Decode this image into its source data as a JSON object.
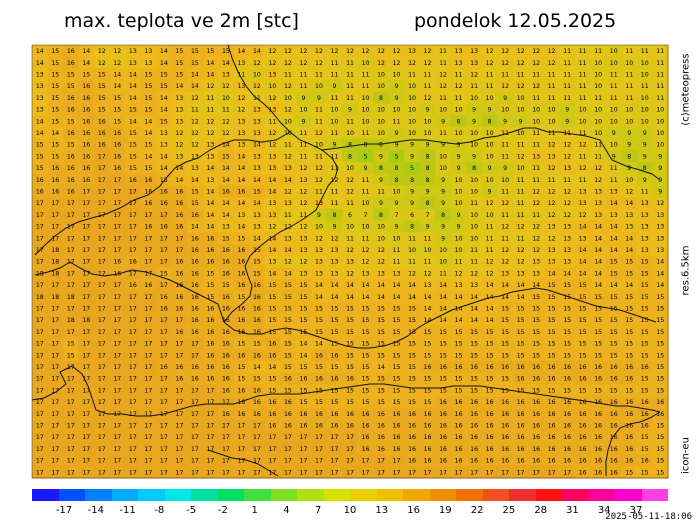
{
  "header": {
    "title": "max. teplota ve 2m [stc]",
    "date": "pondelok 12.05.2025"
  },
  "side": {
    "credit": "(c)meteopress",
    "resolution": "res.6.5km",
    "model": "icon-eu"
  },
  "timestamp": "2025-05-11-18:06",
  "legend": {
    "tick_labels": [
      "-17",
      "-14",
      "-11",
      "-8",
      "-5",
      "-2",
      "1",
      "4",
      "7",
      "10",
      "13",
      "16",
      "19",
      "22",
      "25",
      "28",
      "31",
      "34",
      "37"
    ],
    "colors": [
      "#1a1aff",
      "#0050ff",
      "#0080ff",
      "#00aaff",
      "#00ccff",
      "#00e5e5",
      "#00e0a0",
      "#00e060",
      "#40e040",
      "#80e020",
      "#b0e010",
      "#d8e000",
      "#e8d000",
      "#f0c000",
      "#f0a800",
      "#f09000",
      "#f07000",
      "#f05020",
      "#f03030",
      "#ff1010",
      "#ff0060",
      "#ff00a0",
      "#ff00d0",
      "#ff40e0"
    ]
  },
  "map_colors": {
    "t17": "#e9a71f",
    "t16": "#ebab1e",
    "t15": "#ecb11d",
    "t14": "#ecb61c",
    "t13": "#ecbc1b",
    "t12": "#e8c01a",
    "t11": "#e3c418",
    "t10": "#dcc716",
    "t9": "#cfc814",
    "t8": "#bdc812",
    "t5": "#a6cd10",
    "border": "#111111"
  },
  "grid": {
    "rows": [
      "14 15 16 14 12 12 13 13 14 15 15 15 15 14 14 12 12 12 12 12 12 12 12 12 13 12 11 13 13 12 12 12 12 12 11 11 11 10 11 11 11",
      "14 15 16 14 12 12 13 13 14 15 15 14 14 13 12 12 12 12 12 11 11 10 12 12 12 12 11 13 13 12 12 12 12 12 11 11 10 10 10 10 11",
      "13 15 15 15 15 14 14 15 15 15 14 14 13 11 10 13 11 11 11 11 11 11 10 10 11 11 12 11 12 11 11 11 11 11 11 11 10 11 11 10 11",
      "13 15 15 16 15 14 14 15 15 14 14 12 12 13 12 10 12 11 10 9 11 11 10 9 10 11 12 12 11 11 12 12 12 11 11 11 10 11 11 11 11",
      "13 15 16 16 15 15 14 15 14 13 12 11 10 12 11 12 10 9 9 11 11 10 8 9 10 12 11 11 10 10 9 10 11 11 11 11 11 11 11 10 11",
      "13 15 16 16 15 15 15 15 14 13 11 11 11 12 13 13 12 10 11 10 9 10 10 10 10 9 10 10 9 9 10 10 10 10 9 10 10 10 10 10 10",
      "14 15 15 16 16 15 14 14 15 13 12 12 12 13 13 11 10 9 11 10 11 10 10 11 10 10 9 8 9 8 9 9 10 10 9 10 10 10 10 10 10",
      "14 14 16 16 16 16 15 14 13 12 12 12 12 13 13 12 10 11 12 11 10 11 10 9 10 10 11 10 10 10 11 10 11 11 11 11 10 9 9 9 10",
      "15 15 15 16 16 16 15 15 13 12 12 13 14 13 14 12 11 11 10 9 8 8 8 9 9 9 9 9 10 10 11 11 11 12 12 12 11 10 9 9 10",
      "15 15 16 16 17 16 15 14 14 13 13 13 15 14 13 13 12 11 11 11 8 5 9 5 9 8 10 9 9 10 11 12 13 13 12 11 11 9 8 9 9",
      "15 16 16 16 17 16 15 15 14 14 13 14 14 14 13 13 13 12 12 11 10 9 8 8 5 8 10 9 8 9 9 10 11 12 13 12 12 11 9 8 9",
      "16 16 16 16 17 17 16 16 15 14 14 13 14 14 14 14 14 13 12 12 12 11 9 8 8 8 9 10 10 10 10 11 11 11 11 11 12 11 10 9 9",
      "16 16 16 17 17 17 17 16 16 16 15 14 16 16 15 14 12 12 11 11 12 11 11 10 9 9 9 10 10 9 11 11 12 12 12 13 13 13 12 11 9",
      "17 17 17 17 17 17 17 16 16 16 15 14 14 14 14 13 13 12 13 11 11 10 9 9 9 8 9 10 11 12 12 11 12 12 12 13 13 14 14 13 12",
      "17 17 17 17 17 17 17 17 17 16 16 14 14 13 13 13 11 11 9 8 6 7 8 7 6 7 8 9 10 10 11 11 11 12 12 12 13 13 13 13 13",
      "17 17 17 17 17 17 17 16 16 16 14 14 13 14 13 12 12 12 10 9 10 10 10 9 8 9 9 9 10 11 12 12 12 13 13 14 14 14 13 13 13",
      "17 17 17 17 17 17 17 17 17 17 16 16 15 15 14 14 13 13 12 12 11 11 10 10 11 11 9 10 10 11 11 11 12 12 13 13 14 14 14 13 13",
      "17 18 17 17 17 17 17 17 17 17 16 16 16 16 15 14 14 13 13 13 12 12 12 11 10 10 10 10 11 11 12 12 12 13 13 14 14 14 14 13 13",
      "17 18 17 17 17 16 16 17 17 16 16 16 16 16 15 13 12 12 13 13 13 12 12 11 11 11 10 11 11 12 12 12 13 13 13 14 14 15 15 15 14",
      "18 18 17 17 17 16 17 17 15 16 16 15 16 16 15 14 14 13 13 13 12 13 13 13 12 12 11 12 12 12 13 13 13 14 14 14 14 15 15 15 14",
      "17 17 17 17 17 17 16 16 17 16 16 15 15 16 16 15 15 15 14 14 14 14 14 14 14 13 14 13 13 14 14 14 14 15 15 15 14 14 14 15 14",
      "18 18 18 17 17 17 17 17 16 16 16 15 16 15 16 15 15 15 14 14 14 14 14 14 14 14 14 14 14 14 14 14 15 15 15 15 15 15 15 15 15",
      "17 17 17 17 17 17 17 17 16 16 16 16 16 16 16 15 15 15 15 15 15 15 15 15 15 14 14 14 14 14 15 15 15 15 15 15 15 15 15 15 15",
      "17 17 18 18 17 17 17 17 17 17 16 16 16 16 16 15 15 15 15 15 15 15 15 15 15 14 14 14 14 14 15 15 15 15 15 15 15 15 15 15 15",
      "17 17 17 17 17 17 17 17 17 16 16 16 16 16 16 15 15 15 15 15 15 15 15 15 15 15 15 15 15 15 15 15 15 15 15 15 15 15 15 15 15",
      "17 17 15 17 17 17 17 17 17 17 17 16 16 15 15 16 15 14 14 15 15 15 15 15 15 15 15 15 15 15 15 15 15 15 15 15 15 15 15 15 15",
      "17 17 15 17 17 17 17 17 17 17 17 16 16 16 16 16 15 14 16 16 15 15 15 15 15 15 15 15 15 15 15 15 15 15 15 15 15 15 15 15 15",
      "17 17 17 17 17 17 17 17 16 16 16 16 16 15 14 14 15 15 15 15 15 15 14 15 15 16 16 16 16 16 16 16 16 16 16 16 16 16 16 16 15",
      "17 17 17 17 17 17 17 17 17 16 16 16 16 15 15 15 16 16 16 16 16 15 15 15 15 15 15 15 15 15 15 16 16 16 16 16 16 16 16 15 15",
      "17 17 17 17 17 17 17 17 17 17 17 17 16 16 16 15 15 15 15 15 15 15 15 15 15 15 15 15 15 15 15 15 15 15 15 15 15 15 15 15 15",
      "17 17 17 17 17 17 17 17 17 17 17 17 17 16 16 16 16 15 15 15 15 15 15 15 15 15 16 16 16 16 16 16 16 16 16 16 16 16 16 16 16",
      "17 17 17 17 17 17 17 17 17 17 17 17 16 16 16 16 16 16 16 16 16 16 16 16 16 16 16 16 16 16 16 16 16 16 16 16 16 16 16 16 16",
      "17 17 17 17 17 17 17 17 17 17 17 17 17 17 17 16 16 16 16 16 16 16 16 16 16 16 16 16 16 16 16 16 16 16 16 16 16 16 16 16 15",
      "17 17 17 17 17 17 17 17 17 17 17 17 17 17 17 17 17 17 17 17 17 16 16 16 16 16 16 16 16 16 16 16 16 16 16 16 16 16 16 15 15",
      "17 17 17 17 17 17 17 17 17 17 17 17 17 17 17 17 17 17 17 17 17 16 16 16 16 16 16 16 16 16 16 16 16 16 16 16 16 16 16 15 15",
      "17 17 17 17 17 17 17 17 17 17 17 17 17 17 17 17 17 17 17 17 17 17 17 17 16 16 16 16 16 16 16 16 16 16 16 16 16 16 16 16 15",
      "17 17 17 17 17 17 17 17 17 17 17 17 17 17 17 17 17 17 17 17 17 17 17 17 17 17 17 17 17 17 17 17 17 17 17 16 16 16 15 15 15"
    ]
  }
}
